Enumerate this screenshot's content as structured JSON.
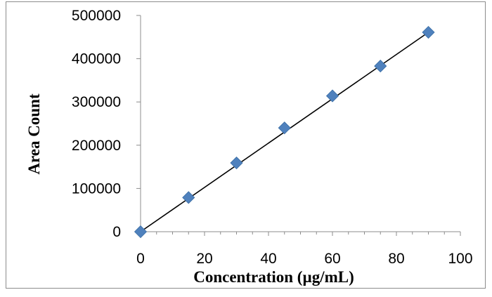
{
  "chart_data": {
    "type": "scatter",
    "title": "",
    "xlabel": "Concentration (µg/mL)",
    "ylabel": "Area Count",
    "xlim": [
      0,
      100
    ],
    "ylim": [
      0,
      500000
    ],
    "xticks": [
      "0",
      "20",
      "40",
      "60",
      "80",
      "100"
    ],
    "yticks": [
      "0",
      "100000",
      "200000",
      "300000",
      "400000",
      "500000"
    ],
    "grid": false,
    "legend": "none",
    "series": [
      {
        "x": [
          0,
          15,
          30,
          45,
          60,
          75,
          90
        ],
        "y": [
          0,
          79000,
          159000,
          240000,
          314000,
          383000,
          461000
        ],
        "marker": "diamond",
        "color": "#4f81bd"
      }
    ],
    "trendline": {
      "type": "linear",
      "x": [
        0,
        90
      ],
      "y": [
        0,
        461000
      ],
      "color": "#000000"
    }
  }
}
